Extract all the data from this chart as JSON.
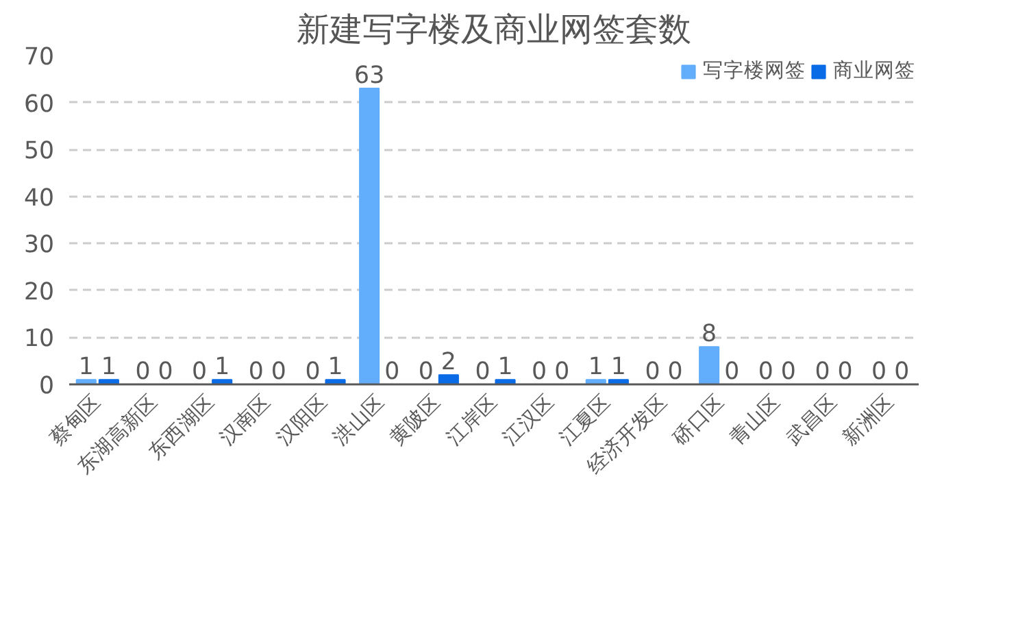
{
  "chart_data": {
    "type": "bar",
    "title": "新建写字楼及商业网签套数",
    "categories": [
      "蔡甸区",
      "东湖高新区",
      "东西湖区",
      "汉南区",
      "汉阳区",
      "洪山区",
      "黄陂区",
      "江岸区",
      "江汉区",
      "江夏区",
      "经济开发区",
      "硚口区",
      "青山区",
      "武昌区",
      "新洲区"
    ],
    "series": [
      {
        "name": "写字楼网签",
        "color": "#62aefc",
        "values": [
          1,
          0,
          0,
          0,
          0,
          63,
          0,
          0,
          0,
          1,
          0,
          8,
          0,
          0,
          0
        ]
      },
      {
        "name": "商业网签",
        "color": "#0a6be6",
        "values": [
          1,
          0,
          1,
          0,
          1,
          0,
          2,
          1,
          0,
          1,
          0,
          0,
          0,
          0,
          0
        ]
      }
    ],
    "ylim": [
      0,
      70
    ],
    "yticks": [
      0,
      10,
      20,
      30,
      40,
      50,
      60,
      70
    ],
    "grid": "y",
    "legend": "top",
    "data_labels": true
  }
}
